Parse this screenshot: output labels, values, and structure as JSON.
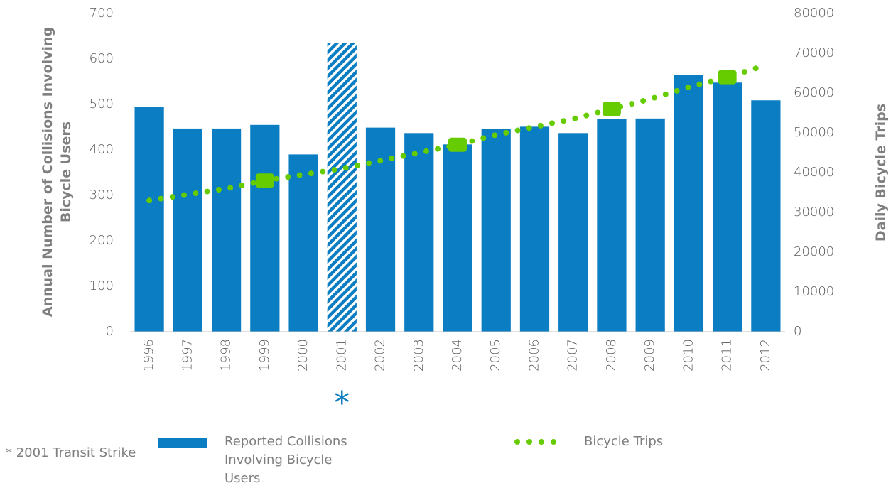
{
  "chart_data": {
    "type": "bar_line",
    "categories": [
      "1996",
      "1997",
      "1998",
      "1999",
      "2000",
      "2001",
      "2002",
      "2003",
      "2004",
      "2005",
      "2006",
      "2007",
      "2008",
      "2009",
      "2010",
      "2011",
      "2012"
    ],
    "series": [
      {
        "name": "Reported Collisions Involving Bicycle Users",
        "color": "#0a7dc3",
        "type": "bar",
        "values": [
          495,
          447,
          447,
          455,
          390,
          635,
          449,
          437,
          412,
          446,
          451,
          437,
          468,
          469,
          565,
          548,
          509
        ],
        "hatched": [
          5
        ]
      },
      {
        "name": "Bicycle Trips",
        "color": "#66cc00",
        "type": "line",
        "axis": "y2",
        "values": [
          33000,
          34500,
          36000,
          38000,
          39500,
          41000,
          43000,
          45000,
          47000,
          49500,
          51500,
          53500,
          56000,
          58500,
          61500,
          64000,
          67000
        ],
        "markers": [
          3,
          8,
          12,
          15
        ]
      }
    ],
    "ylabel": "Annual Number of Collisions Involving Bicycle Users",
    "y2label": "Daily Bicycle Trips",
    "ylim": [
      0,
      700
    ],
    "yticks": [
      0,
      100,
      200,
      300,
      400,
      500,
      600,
      700
    ],
    "y2lim": [
      0,
      80000
    ],
    "y2ticks": [
      0,
      10000,
      20000,
      30000,
      40000,
      50000,
      60000,
      70000,
      80000
    ],
    "annotation_marker": "*",
    "annotation_index": 5,
    "footnote": "* 2001 Transit Strike"
  }
}
